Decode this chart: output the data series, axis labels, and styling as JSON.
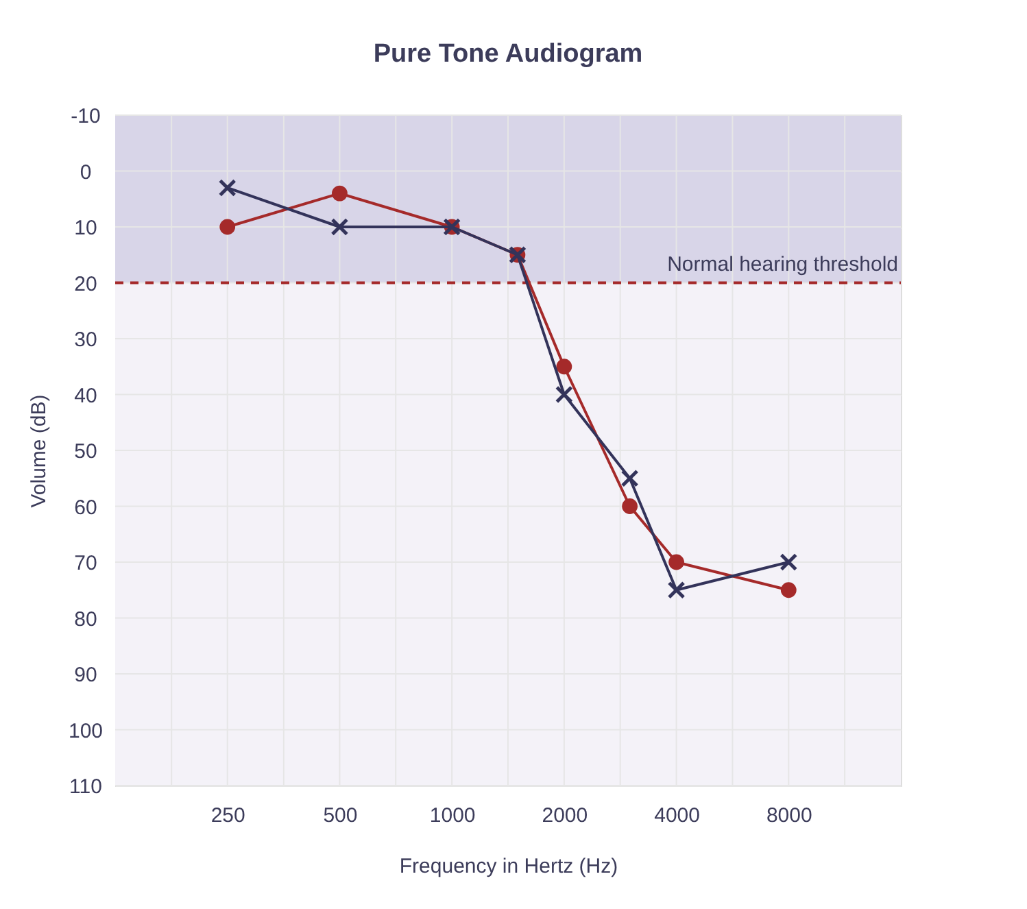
{
  "chart_data": {
    "type": "line",
    "title": "Pure Tone Audiogram",
    "xlabel": "Frequency in Hertz (Hz)",
    "ylabel": "Volume (dB)",
    "log": "x",
    "xlim": [
      125,
      16000
    ],
    "ylim": [
      110,
      -10
    ],
    "xticks": [
      {
        "value": 177,
        "label": null
      },
      250,
      {
        "value": 354,
        "label": null
      },
      500,
      {
        "value": 707,
        "label": null
      },
      1000,
      {
        "value": 1414,
        "label": null
      },
      2000,
      {
        "value": 2828,
        "label": null
      },
      4000,
      {
        "value": 5657,
        "label": null
      },
      8000,
      {
        "value": 11314,
        "label": null
      }
    ],
    "yticks": [
      -10,
      0,
      10,
      20,
      30,
      40,
      50,
      60,
      70,
      80,
      90,
      100,
      110
    ],
    "grid": true,
    "x": [
      250,
      500,
      1000,
      1500,
      2000,
      3000,
      4000,
      8000
    ],
    "series": [
      {
        "color": "#a52a2a",
        "marker": "circle",
        "values": [
          10,
          4,
          10,
          15,
          35,
          60,
          70,
          75
        ]
      },
      {
        "color": "#33335a",
        "marker": "cross",
        "values": [
          3,
          10,
          10,
          15,
          40,
          55,
          75,
          70
        ]
      }
    ],
    "bands": [
      {
        "axis": "y",
        "from": -10,
        "to": 20,
        "color": "#d8d5e8"
      },
      {
        "axis": "y",
        "from": 20,
        "to": 110,
        "color": "#f4f2f8"
      }
    ],
    "ref_lines": [
      {
        "axis": "y",
        "value": 20,
        "label": "Normal hearing threshold",
        "color": "#a52a2a",
        "line_style": "dashed"
      }
    ]
  }
}
